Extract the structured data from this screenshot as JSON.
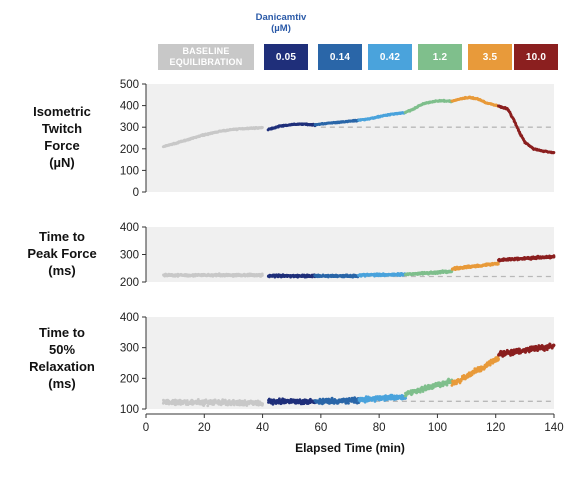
{
  "legend": {
    "title_line1": "Danicamtiv",
    "title_line2": "(µM)",
    "baseline_line1": "BASELINE",
    "baseline_line2": "EQUILIBRATION",
    "baseline_color": "#c8c8c8",
    "doses": [
      {
        "label": "0.05",
        "color": "#1f2f7a"
      },
      {
        "label": "0.14",
        "color": "#2a66a8"
      },
      {
        "label": "0.42",
        "color": "#4aa3dc"
      },
      {
        "label": "1.2",
        "color": "#7fbf8c"
      },
      {
        "label": "3.5",
        "color": "#e89a3a"
      },
      {
        "label": "10.0",
        "color": "#8b1f1f"
      }
    ]
  },
  "chart_data": [
    {
      "type": "scatter",
      "ylabel": "Isometric Twitch Force (µN)",
      "ylabel_lines": [
        "Isometric",
        "Twitch",
        "Force",
        "(µN)"
      ],
      "xlim": [
        0,
        140
      ],
      "ylim": [
        0,
        500
      ],
      "yticks": [
        0,
        100,
        200,
        300,
        400,
        500
      ],
      "grid": false,
      "baseline_reference": 300,
      "segments": [
        {
          "name": "BASELINE EQUILIBRATION",
          "color": "#c8c8c8",
          "x": [
            6,
            10,
            15,
            20,
            25,
            30,
            35,
            40
          ],
          "y": [
            210,
            225,
            245,
            265,
            280,
            290,
            295,
            298
          ]
        },
        {
          "name": "0.05",
          "color": "#1f2f7a",
          "x": [
            42,
            46,
            50,
            54,
            58
          ],
          "y": [
            290,
            305,
            312,
            315,
            310
          ]
        },
        {
          "name": "0.14",
          "color": "#2a66a8",
          "x": [
            58,
            62,
            66,
            70,
            73
          ],
          "y": [
            312,
            318,
            322,
            328,
            332
          ]
        },
        {
          "name": "0.42",
          "color": "#4aa3dc",
          "x": [
            73,
            77,
            81,
            85,
            89
          ],
          "y": [
            332,
            340,
            352,
            362,
            368
          ]
        },
        {
          "name": "1.2",
          "color": "#7fbf8c",
          "x": [
            89,
            92,
            95,
            98,
            101,
            105
          ],
          "y": [
            368,
            385,
            408,
            418,
            422,
            420
          ]
        },
        {
          "name": "3.5",
          "color": "#e89a3a",
          "x": [
            105,
            108,
            111,
            114,
            117,
            121
          ],
          "y": [
            420,
            432,
            438,
            430,
            412,
            398
          ]
        },
        {
          "name": "10.0",
          "color": "#8b1f1f",
          "x": [
            121,
            124,
            126,
            128,
            130,
            133,
            136,
            140
          ],
          "y": [
            398,
            385,
            340,
            280,
            230,
            200,
            190,
            182
          ]
        }
      ]
    },
    {
      "type": "scatter",
      "ylabel": "Time to Peak Force (ms)",
      "ylabel_lines": [
        "Time to",
        "Peak Force",
        "(ms)"
      ],
      "xlim": [
        0,
        140
      ],
      "ylim": [
        200,
        400
      ],
      "yticks": [
        200,
        300,
        400
      ],
      "grid": false,
      "baseline_reference": 220,
      "segments": [
        {
          "name": "BASELINE EQUILIBRATION",
          "color": "#c8c8c8",
          "x": [
            6,
            40
          ],
          "y": [
            225,
            225
          ]
        },
        {
          "name": "0.05",
          "color": "#1f2f7a",
          "x": [
            42,
            58
          ],
          "y": [
            222,
            222
          ]
        },
        {
          "name": "0.14",
          "color": "#2a66a8",
          "x": [
            58,
            73
          ],
          "y": [
            222,
            222
          ]
        },
        {
          "name": "0.42",
          "color": "#4aa3dc",
          "x": [
            73,
            89
          ],
          "y": [
            225,
            228
          ]
        },
        {
          "name": "1.2",
          "color": "#7fbf8c",
          "x": [
            89,
            105
          ],
          "y": [
            228,
            238
          ]
        },
        {
          "name": "3.5",
          "color": "#e89a3a",
          "x": [
            105,
            121
          ],
          "y": [
            248,
            268
          ]
        },
        {
          "name": "10.0",
          "color": "#8b1f1f",
          "x": [
            121,
            140
          ],
          "y": [
            280,
            292
          ]
        }
      ]
    },
    {
      "type": "scatter",
      "ylabel": "Time to 50% Relaxation (ms)",
      "ylabel_lines": [
        "Time to",
        "50%",
        "Relaxation",
        "(ms)"
      ],
      "xlabel": "Elapsed Time (min)",
      "xlim": [
        0,
        140
      ],
      "ylim": [
        100,
        400
      ],
      "yticks": [
        100,
        200,
        300,
        400
      ],
      "xticks": [
        0,
        20,
        40,
        60,
        80,
        100,
        120,
        140
      ],
      "grid": false,
      "baseline_reference": 125,
      "segments": [
        {
          "name": "BASELINE EQUILIBRATION",
          "color": "#c8c8c8",
          "x": [
            6,
            40
          ],
          "y": [
            122,
            120
          ]
        },
        {
          "name": "0.05",
          "color": "#1f2f7a",
          "x": [
            42,
            58
          ],
          "y": [
            125,
            125
          ]
        },
        {
          "name": "0.14",
          "color": "#2a66a8",
          "x": [
            58,
            73
          ],
          "y": [
            125,
            128
          ]
        },
        {
          "name": "0.42",
          "color": "#4aa3dc",
          "x": [
            73,
            89
          ],
          "y": [
            130,
            140
          ]
        },
        {
          "name": "1.2",
          "color": "#7fbf8c",
          "x": [
            89,
            105
          ],
          "y": [
            150,
            190
          ]
        },
        {
          "name": "3.5",
          "color": "#e89a3a",
          "x": [
            105,
            121
          ],
          "y": [
            180,
            265
          ]
        },
        {
          "name": "10.0",
          "color": "#8b1f1f",
          "x": [
            121,
            140
          ],
          "y": [
            280,
            305
          ]
        }
      ]
    }
  ]
}
